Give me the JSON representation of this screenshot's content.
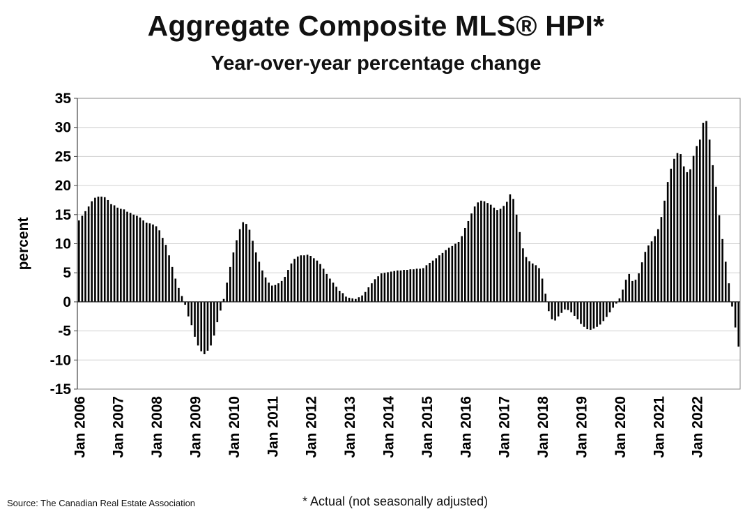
{
  "chart_data": {
    "type": "bar",
    "title": "Aggregate Composite MLS® HPI*",
    "subtitle": "Year-over-year percentage change",
    "xlabel": "",
    "ylabel": "percent",
    "ylim": [
      -15,
      35
    ],
    "yticks": [
      35,
      30,
      25,
      20,
      15,
      10,
      5,
      0,
      -5,
      -10,
      -15
    ],
    "grid": "horizontal",
    "xtick_labels": [
      "Jan 2006",
      "Jan 2007",
      "Jan 2008",
      "Jan 2009",
      "Jan 2010",
      "Jan 2011",
      "Jan 2012",
      "Jan 2013",
      "Jan 2014",
      "Jan 2015",
      "Jan 2016",
      "Jan 2017",
      "Jan 2018",
      "Jan 2019",
      "Jan 2020",
      "Jan 2021",
      "Jan 2022"
    ],
    "start_month": "Jan 2006",
    "end_month": "Dec 2022",
    "series": [
      {
        "values": [
          14.0,
          14.8,
          15.6,
          16.4,
          17.3,
          17.9,
          18.1,
          18.1,
          18.0,
          17.5,
          16.8,
          16.6,
          16.2,
          16.0,
          15.9,
          15.5,
          15.3,
          15.0,
          14.8,
          14.5,
          14.0,
          13.6,
          13.5,
          13.3,
          13.0,
          12.3,
          11.0,
          9.8,
          8.0,
          6.0,
          4.0,
          2.4,
          1.0,
          -0.5,
          -2.5,
          -4.0,
          -6.0,
          -7.5,
          -8.5,
          -9.0,
          -8.4,
          -7.5,
          -5.8,
          -3.5,
          -1.5,
          0.5,
          3.3,
          6.0,
          8.5,
          10.6,
          12.5,
          13.7,
          13.4,
          12.4,
          10.5,
          8.5,
          6.9,
          5.4,
          4.2,
          3.3,
          2.8,
          2.9,
          3.2,
          3.6,
          4.3,
          5.5,
          6.6,
          7.4,
          7.8,
          8.0,
          8.0,
          8.1,
          7.9,
          7.5,
          7.1,
          6.5,
          5.7,
          4.8,
          4.0,
          3.3,
          2.6,
          1.9,
          1.5,
          0.9,
          0.7,
          0.6,
          0.5,
          0.8,
          1.1,
          1.7,
          2.5,
          3.2,
          3.9,
          4.4,
          4.9,
          5.0,
          5.1,
          5.2,
          5.3,
          5.4,
          5.4,
          5.5,
          5.5,
          5.6,
          5.6,
          5.7,
          5.7,
          5.8,
          6.3,
          6.7,
          7.1,
          7.5,
          8.0,
          8.4,
          8.9,
          9.3,
          9.6,
          10.0,
          10.3,
          11.3,
          12.7,
          13.9,
          15.2,
          16.4,
          17.1,
          17.4,
          17.3,
          17.0,
          16.7,
          16.2,
          15.8,
          16.0,
          16.5,
          17.2,
          18.5,
          17.7,
          15.0,
          12.0,
          9.2,
          7.7,
          7.0,
          6.6,
          6.3,
          5.8,
          4.0,
          1.4,
          -1.6,
          -3.0,
          -3.2,
          -2.5,
          -1.9,
          -1.3,
          -1.4,
          -1.8,
          -2.4,
          -3.0,
          -3.8,
          -4.3,
          -4.7,
          -4.8,
          -4.6,
          -4.3,
          -3.9,
          -3.3,
          -2.6,
          -1.8,
          -1.0,
          -0.3,
          0.6,
          2.1,
          3.8,
          4.8,
          3.6,
          3.8,
          4.9,
          6.8,
          8.6,
          9.7,
          10.4,
          11.3,
          12.5,
          14.6,
          17.4,
          20.6,
          22.9,
          24.6,
          25.6,
          25.4,
          23.3,
          22.3,
          22.8,
          25.1,
          26.8,
          27.9,
          30.8,
          31.1,
          27.9,
          23.5,
          19.8,
          14.9,
          10.8,
          6.9,
          3.2,
          -0.8,
          -4.4,
          -7.7
        ]
      }
    ]
  },
  "source_text": "Source: The Canadian Real Estate Association",
  "footnote_text": "* Actual (not seasonally adjusted)"
}
